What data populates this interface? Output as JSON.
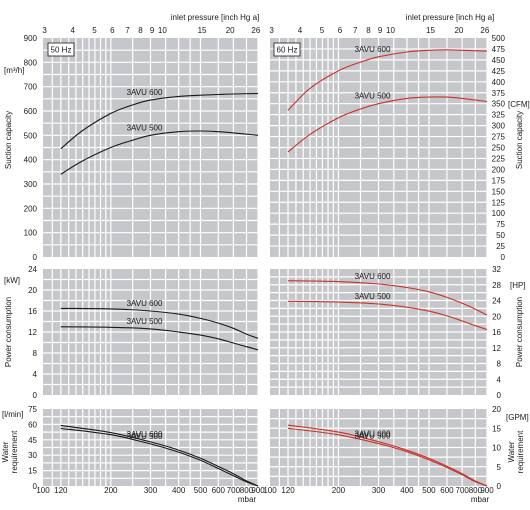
{
  "top_axis": {
    "title": "inlet pressure [inch Hg a]",
    "ticks": [
      "3",
      "4",
      "5",
      "6",
      "7",
      "8",
      "9",
      "10",
      "15",
      "20",
      "26"
    ]
  },
  "bottom_axis": {
    "unit": "mbar",
    "ticks": [
      "100",
      "120",
      "200",
      "300",
      "400",
      "500",
      "600",
      "700",
      "800",
      "900"
    ]
  },
  "frequency_labels": {
    "left": "50 Hz",
    "right": "60 Hz"
  },
  "curve_labels": {
    "a": "3AVU 600",
    "b": "3AVU 500"
  },
  "left_axes": {
    "capacity_unit": "[m³/h]",
    "capacity_ticks": [
      "0",
      "100",
      "200",
      "300",
      "400",
      "500",
      "600",
      "700",
      "800",
      "900"
    ],
    "power_unit": "[kW]",
    "power_ticks": [
      "0",
      "4",
      "8",
      "12",
      "16",
      "20",
      "24"
    ],
    "water_unit": "[l/min]",
    "water_ticks": [
      "0",
      "15",
      "30",
      "45",
      "60",
      "75"
    ]
  },
  "right_axes": {
    "capacity_unit": "[CFM]",
    "capacity_ticks": [
      "0",
      "25",
      "50",
      "75",
      "100",
      "125",
      "150",
      "175",
      "200",
      "225",
      "250",
      "275",
      "300",
      "325",
      "350",
      "375",
      "400",
      "425",
      "450",
      "475",
      "500"
    ],
    "power_unit": "[HP]",
    "power_ticks": [
      "0",
      "4",
      "8",
      "12",
      "16",
      "20",
      "24",
      "28",
      "32"
    ],
    "water_unit": "[GPM]",
    "water_ticks": [
      "0",
      "5",
      "10",
      "15",
      "20"
    ]
  },
  "row_titles": {
    "capacity_right": "Suction capacity",
    "capacity_left": "Suction capacity",
    "power_left": "Power consumption",
    "power_right": "Power consumption",
    "water_left_1": "Water",
    "water_left_2": "requirement",
    "water_right_1": "Water",
    "water_right_2": "requirement"
  },
  "colors": {
    "hz50": "#1a1a1a",
    "hz60": "#c8322a",
    "panel": "#c6c7cb",
    "grid": "#ffffff"
  },
  "chart_data": [
    {
      "type": "line",
      "title": "50 Hz",
      "xlabel": "mbar",
      "ylabel": "Suction capacity [m³/h]",
      "ylim": [
        0,
        900
      ],
      "xlim": [
        100,
        900
      ],
      "series": [
        {
          "name": "3AVU 600",
          "x": [
            120,
            150,
            200,
            250,
            300,
            400,
            500,
            600,
            700,
            900
          ],
          "y": [
            445,
            520,
            590,
            625,
            645,
            660,
            665,
            668,
            670,
            672
          ]
        },
        {
          "name": "3AVU 500",
          "x": [
            120,
            150,
            200,
            250,
            300,
            400,
            500,
            600,
            700,
            900
          ],
          "y": [
            340,
            395,
            450,
            480,
            500,
            515,
            518,
            515,
            510,
            500
          ]
        }
      ]
    },
    {
      "type": "line",
      "title": "60 Hz",
      "xlabel": "mbar",
      "ylabel": "Suction capacity [CFM]",
      "ylim": [
        0,
        500
      ],
      "xlim": [
        100,
        900
      ],
      "series": [
        {
          "name": "3AVU 600",
          "x": [
            120,
            150,
            200,
            250,
            300,
            400,
            500,
            600,
            700,
            900
          ],
          "y": [
            335,
            385,
            425,
            445,
            457,
            468,
            472,
            473,
            472,
            470
          ]
        },
        {
          "name": "3AVU 500",
          "x": [
            120,
            150,
            200,
            250,
            300,
            400,
            500,
            600,
            700,
            900
          ],
          "y": [
            240,
            280,
            318,
            338,
            350,
            362,
            365,
            365,
            362,
            355
          ]
        }
      ]
    },
    {
      "type": "line",
      "title": "50 Hz",
      "xlabel": "mbar",
      "ylabel": "Power consumption [kW]",
      "ylim": [
        0,
        24
      ],
      "xlim": [
        100,
        900
      ],
      "series": [
        {
          "name": "3AVU 600",
          "x": [
            120,
            200,
            300,
            400,
            500,
            600,
            700,
            800,
            900
          ],
          "y": [
            16.5,
            16.4,
            16.0,
            15.4,
            14.6,
            13.7,
            12.7,
            11.6,
            10.8
          ]
        },
        {
          "name": "3AVU 500",
          "x": [
            120,
            200,
            300,
            400,
            500,
            600,
            700,
            800,
            900
          ],
          "y": [
            13.0,
            12.9,
            12.6,
            12.0,
            11.4,
            10.7,
            9.9,
            9.2,
            8.6
          ]
        }
      ]
    },
    {
      "type": "line",
      "title": "60 Hz",
      "xlabel": "mbar",
      "ylabel": "Power consumption [HP]",
      "ylim": [
        0,
        32
      ],
      "xlim": [
        100,
        900
      ],
      "series": [
        {
          "name": "3AVU 600",
          "x": [
            120,
            200,
            300,
            400,
            500,
            600,
            700,
            800,
            900
          ],
          "y": [
            29.0,
            28.8,
            28.2,
            27.3,
            26.2,
            24.8,
            23.3,
            21.8,
            20.3
          ]
        },
        {
          "name": "3AVU 500",
          "x": [
            120,
            200,
            300,
            400,
            500,
            600,
            700,
            800,
            900
          ],
          "y": [
            23.8,
            23.6,
            23.1,
            22.3,
            21.3,
            20.1,
            18.8,
            17.6,
            16.6
          ]
        }
      ]
    },
    {
      "type": "line",
      "title": "50 Hz",
      "xlabel": "mbar",
      "ylabel": "Water requirement [l/min]",
      "ylim": [
        0,
        75
      ],
      "xlim": [
        100,
        900
      ],
      "series": [
        {
          "name": "3AVU 600",
          "x": [
            120,
            200,
            300,
            400,
            500,
            600,
            700,
            800,
            900
          ],
          "y": [
            59,
            52,
            43,
            35,
            27,
            19,
            12,
            5,
            0
          ]
        },
        {
          "name": "3AVU 500",
          "x": [
            120,
            200,
            300,
            400,
            500,
            600,
            700,
            800,
            900
          ],
          "y": [
            56,
            50,
            41,
            33,
            25,
            17,
            10,
            4,
            0
          ]
        }
      ]
    },
    {
      "type": "line",
      "title": "60 Hz",
      "xlabel": "mbar",
      "ylabel": "Water requirement [GPM]",
      "ylim": [
        0,
        20
      ],
      "xlim": [
        100,
        900
      ],
      "series": [
        {
          "name": "3AVU 600",
          "x": [
            120,
            200,
            300,
            400,
            500,
            600,
            700,
            800,
            900
          ],
          "y": [
            15.8,
            14.0,
            11.5,
            9.3,
            7.2,
            5.1,
            3.2,
            1.3,
            0
          ]
        },
        {
          "name": "3AVU 500",
          "x": [
            120,
            200,
            300,
            400,
            500,
            600,
            700,
            800,
            900
          ],
          "y": [
            15.0,
            13.3,
            11.0,
            8.9,
            6.8,
            4.8,
            2.9,
            1.1,
            0
          ]
        }
      ]
    }
  ]
}
